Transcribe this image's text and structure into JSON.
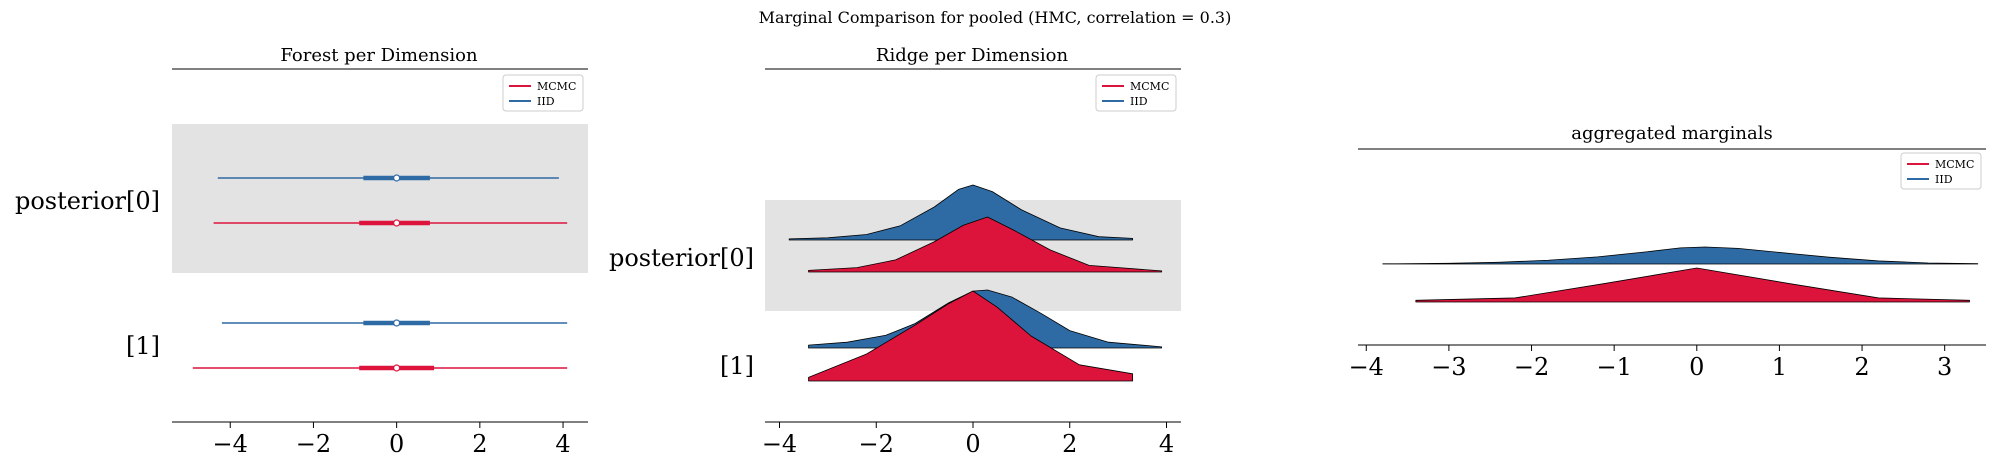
{
  "figure": {
    "suptitle": "Marginal Comparison for pooled (HMC, correlation = 0.3)"
  },
  "colors": {
    "mcmc": "#dc143c",
    "iid": "#2e6aa3",
    "band": "#e3e3e3",
    "outline": "#000000"
  },
  "legend": {
    "mcmc": "MCMC",
    "iid": "IID"
  },
  "chart_data": [
    {
      "type": "forest",
      "title": "Forest per Dimension",
      "xlim": [
        -5.4,
        4.6
      ],
      "xticks": [
        -4,
        -2,
        0,
        2,
        4
      ],
      "xtick_labels": [
        "−4",
        "−2",
        "0",
        "2",
        "4"
      ],
      "rows": [
        {
          "label": "posterior[0]",
          "series": [
            {
              "name": "IID",
              "whisker": [
                -4.3,
                3.9
              ],
              "box": [
                -0.8,
                0.8
              ],
              "median": 0.0
            },
            {
              "name": "MCMC",
              "whisker": [
                -4.4,
                4.1
              ],
              "box": [
                -0.9,
                0.8
              ],
              "median": 0.0
            }
          ]
        },
        {
          "label": "[1]",
          "series": [
            {
              "name": "IID",
              "whisker": [
                -4.2,
                4.1
              ],
              "box": [
                -0.8,
                0.8
              ],
              "median": 0.0
            },
            {
              "name": "MCMC",
              "whisker": [
                -4.9,
                4.1
              ],
              "box": [
                -0.9,
                0.9
              ],
              "median": 0.0
            }
          ]
        }
      ],
      "legend_position": "top-right"
    },
    {
      "type": "ridge",
      "title": "Ridge per Dimension",
      "xlim": [
        -4.3,
        4.3
      ],
      "xticks": [
        -4,
        -2,
        0,
        2,
        4
      ],
      "xtick_labels": [
        "−4",
        "−2",
        "0",
        "2",
        "4"
      ],
      "rows": [
        {
          "label": "posterior[0]",
          "series": [
            {
              "name": "IID",
              "x": [
                -3.8,
                -3.0,
                -2.2,
                -1.5,
                -0.8,
                -0.3,
                0.0,
                0.4,
                1.0,
                1.8,
                2.6,
                3.3
              ],
              "density": [
                0.02,
                0.04,
                0.1,
                0.26,
                0.6,
                0.92,
                1.0,
                0.88,
                0.55,
                0.22,
                0.06,
                0.03
              ]
            },
            {
              "name": "MCMC",
              "x": [
                -3.4,
                -2.4,
                -1.6,
                -0.8,
                -0.2,
                0.3,
                0.8,
                1.6,
                2.4,
                3.9
              ],
              "density": [
                0.03,
                0.08,
                0.22,
                0.55,
                0.85,
                1.0,
                0.78,
                0.4,
                0.12,
                0.02
              ]
            }
          ]
        },
        {
          "label": "[1]",
          "series": [
            {
              "name": "IID",
              "x": [
                -3.4,
                -2.6,
                -1.8,
                -1.2,
                -0.5,
                0.0,
                0.3,
                0.8,
                1.4,
                2.0,
                2.8,
                3.9
              ],
              "density": [
                0.05,
                0.1,
                0.22,
                0.42,
                0.78,
                0.98,
                1.0,
                0.88,
                0.6,
                0.3,
                0.1,
                0.02
              ]
            },
            {
              "name": "MCMC",
              "x": [
                -3.4,
                -2.2,
                -1.2,
                -0.5,
                0.0,
                0.5,
                1.2,
                2.2,
                3.3
              ],
              "density": [
                0.04,
                0.3,
                0.62,
                0.86,
                1.0,
                0.82,
                0.5,
                0.18,
                0.08
              ]
            }
          ]
        }
      ],
      "legend_position": "top-right"
    },
    {
      "type": "ridge",
      "title": "aggregated marginals",
      "xlim": [
        -4.1,
        3.5
      ],
      "xticks": [
        -4,
        -3,
        -2,
        -1,
        0,
        1,
        2,
        3
      ],
      "xtick_labels": [
        "−4",
        "−3",
        "−2",
        "−1",
        "0",
        "1",
        "2",
        "3"
      ],
      "rows": [
        {
          "label": "",
          "series": [
            {
              "name": "IID",
              "x": [
                -3.8,
                -3.0,
                -2.4,
                -1.8,
                -1.2,
                -0.6,
                -0.2,
                0.1,
                0.5,
                1.0,
                1.6,
                2.2,
                2.8,
                3.4
              ],
              "density": [
                0.01,
                0.04,
                0.1,
                0.22,
                0.42,
                0.72,
                0.95,
                1.0,
                0.92,
                0.68,
                0.4,
                0.18,
                0.06,
                0.02
              ]
            },
            {
              "name": "MCMC",
              "x": [
                -3.4,
                -2.2,
                -1.1,
                0.0,
                1.1,
                2.2,
                3.3
              ],
              "density": [
                0.05,
                0.12,
                0.55,
                1.0,
                0.55,
                0.12,
                0.05
              ]
            }
          ]
        }
      ],
      "legend_position": "top-right"
    }
  ]
}
